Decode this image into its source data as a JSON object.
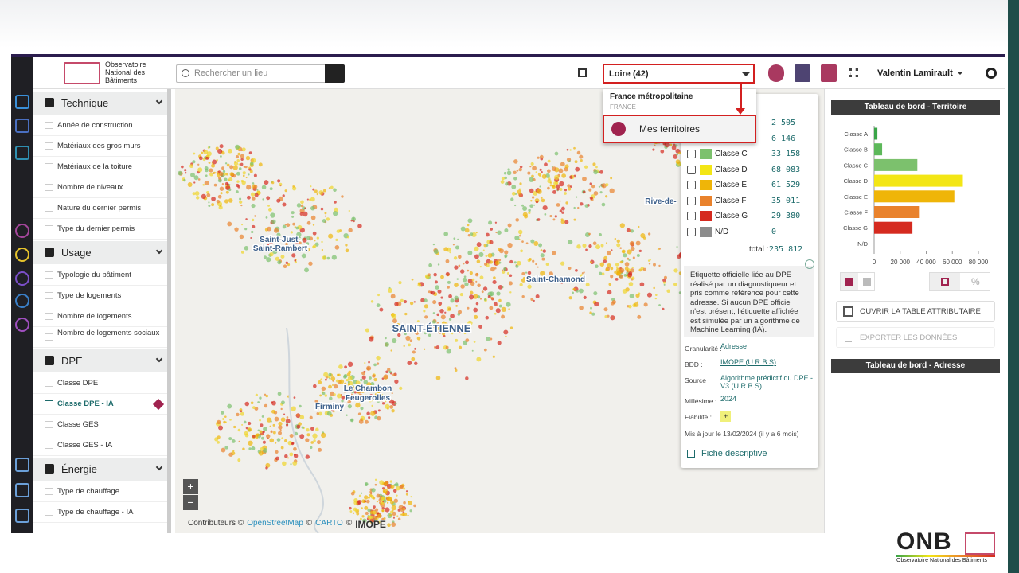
{
  "header": {
    "logo": "Observatoire National des Bâtiments",
    "search_placeholder": "Rechercher un lieu",
    "territory_select": "Loire (42)",
    "user": "Valentin Lamirault"
  },
  "dropdown": {
    "title": "France métropolitaine",
    "subtitle": "FRANCE",
    "action": "Mes territoires"
  },
  "sidebar": {
    "sections": [
      {
        "title": "Technique",
        "items": [
          "Année de construction",
          "Matériaux des gros murs",
          "Matériaux de la toiture",
          "Nombre de niveaux",
          "Nature du dernier permis",
          "Type du dernier permis"
        ]
      },
      {
        "title": "Usage",
        "items": [
          "Typologie du bâtiment",
          "Type de logements",
          "Nombre de logements",
          "Nombre de logements sociaux"
        ]
      },
      {
        "title": "DPE",
        "items": [
          "Classe DPE",
          "Classe DPE - IA",
          "Classe GES",
          "Classe GES - IA"
        ],
        "active": 1
      },
      {
        "title": "Énergie",
        "items": [
          "Type de chauffage",
          "Type de chauffage - IA"
        ]
      }
    ]
  },
  "map": {
    "labels": [
      "Saint-Just-",
      "Saint-Rambert",
      "Saint-Chamond",
      "SAINT-ÉTIENNE",
      "Le Chambon",
      "Feugerolles",
      "Firminy",
      "Rive-de-"
    ],
    "attribution": [
      "Contributeurs ©",
      "OpenStreetMap",
      "©",
      "CARTO",
      "©",
      "IMOPE"
    ],
    "zoom": [
      "+",
      "−"
    ]
  },
  "legend": {
    "rows": [
      {
        "count": "2 505"
      },
      {
        "count": "6 146"
      },
      {
        "label": "Classe C",
        "color": "#7cc16d",
        "count": "33 158"
      },
      {
        "label": "Classe D",
        "color": "#f3e615",
        "count": "68 083"
      },
      {
        "label": "Classe E",
        "color": "#efb508",
        "count": "61 529"
      },
      {
        "label": "Classe F",
        "color": "#e9822c",
        "count": "35 011"
      },
      {
        "label": "Classe G",
        "color": "#d52a1f",
        "count": "29 380"
      },
      {
        "label": "N/D",
        "color": "#8c8c8c",
        "count": "0"
      }
    ],
    "total_label": "total :",
    "total": "235 812",
    "description": "Etiquette officielle liée au DPE réalisé par un diagnostiqueur et pris comme référence pour cette adresse. Si aucun DPE officiel n'est présent, l'étiquette affichée est simulée par un algorithme de Machine Learning (IA).",
    "meta": [
      {
        "key": "Granularité :",
        "value": "Adresse"
      },
      {
        "key": "BDD :",
        "value": "IMOPE (U.R.B.S)"
      },
      {
        "key": "Source :",
        "value": "Algorithme prédictif du DPE - V3 (U.R.B.S)"
      },
      {
        "key": "Millésime :",
        "value": "2024"
      },
      {
        "key": "Fiabilité :",
        "value": "+"
      }
    ],
    "updated": "Mis à jour le 13/02/2024 (il y a 6 mois)",
    "link": "Fiche descriptive"
  },
  "chart_data": {
    "type": "bar",
    "title": "Tableau de bord - Territoire",
    "categories": [
      "Classe A",
      "Classe B",
      "Classe C",
      "Classe D",
      "Classe E",
      "Classe F",
      "Classe G",
      "N/D"
    ],
    "values": [
      2505,
      6146,
      33158,
      68083,
      61529,
      35011,
      29380,
      0
    ],
    "colors": [
      "#3aa548",
      "#5db85a",
      "#7cc16d",
      "#f3e615",
      "#efb508",
      "#e9822c",
      "#d52a1f",
      "#8c8c8c"
    ],
    "xlim": [
      0,
      80000
    ],
    "xticks": [
      0,
      {
        "value": 20000,
        "label": "20 000"
      },
      {
        "value": 40000,
        "label": "40 000"
      },
      {
        "value": 60000,
        "label": "60 000"
      },
      {
        "value": 80000,
        "label": "80 000"
      }
    ]
  },
  "dashboard": {
    "percent": "%",
    "open_table": "OUVRIR LA TABLE ATTRIBUTAIRE",
    "export": "EXPORTER LES DONNÉES",
    "address_title": "Tableau de bord - Adresse"
  },
  "footer": {
    "brand": "ONB",
    "tagline": "Observatoire National des Bâtiments"
  }
}
